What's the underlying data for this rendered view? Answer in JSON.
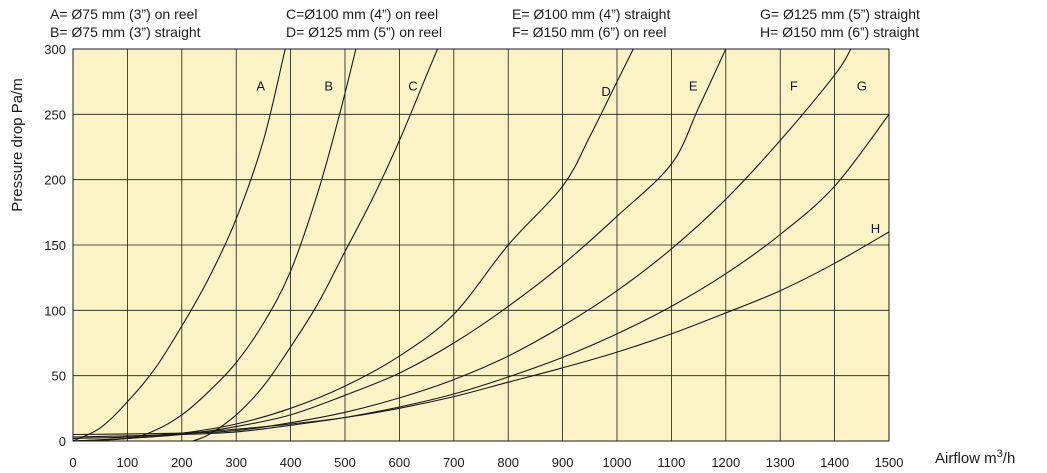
{
  "chart_data": {
    "type": "line",
    "xlabel": "Airflow m³/h",
    "ylabel": "Pressure drop Pa/m",
    "xlim": [
      0,
      1500
    ],
    "ylim": [
      0,
      300
    ],
    "xticks": [
      0,
      100,
      200,
      300,
      400,
      500,
      600,
      700,
      800,
      900,
      1000,
      1100,
      1200,
      1300,
      1400,
      1500
    ],
    "yticks": [
      0,
      50,
      100,
      150,
      200,
      250,
      300
    ],
    "grid": true,
    "background_color": "#fbf3c5",
    "line_color": "#1a1a1a",
    "legend": [
      "A= Ø75 mm (3”) on reel",
      "B= Ø75 mm (3”) straight",
      "C=Ø100 mm (4”) on reel",
      "D= Ø125 mm (5”) on reel",
      "E= Ø100 mm (4”) straight",
      "F= Ø150 mm (6”) on reel",
      "G= Ø125 mm (5”) straight",
      "H= Ø150 mm (6”) straight"
    ],
    "series": [
      {
        "name": "A",
        "label_at": [
          345,
          272
        ],
        "points": [
          [
            0,
            0
          ],
          [
            50,
            10
          ],
          [
            100,
            30
          ],
          [
            150,
            55
          ],
          [
            200,
            88
          ],
          [
            250,
            125
          ],
          [
            300,
            170
          ],
          [
            350,
            230
          ],
          [
            390,
            300
          ]
        ]
      },
      {
        "name": "B",
        "label_at": [
          470,
          272
        ],
        "points": [
          [
            0,
            0
          ],
          [
            100,
            2
          ],
          [
            150,
            8
          ],
          [
            200,
            20
          ],
          [
            250,
            38
          ],
          [
            300,
            60
          ],
          [
            350,
            90
          ],
          [
            400,
            130
          ],
          [
            450,
            190
          ],
          [
            490,
            250
          ],
          [
            520,
            300
          ]
        ]
      },
      {
        "name": "C",
        "label_at": [
          625,
          272
        ],
        "points": [
          [
            220,
            0
          ],
          [
            250,
            5
          ],
          [
            300,
            20
          ],
          [
            350,
            42
          ],
          [
            400,
            72
          ],
          [
            450,
            105
          ],
          [
            500,
            145
          ],
          [
            550,
            185
          ],
          [
            600,
            230
          ],
          [
            650,
            280
          ],
          [
            670,
            300
          ]
        ]
      },
      {
        "name": "D",
        "label_at": [
          980,
          268
        ],
        "points": [
          [
            0,
            0
          ],
          [
            100,
            2
          ],
          [
            200,
            6
          ],
          [
            300,
            13
          ],
          [
            400,
            25
          ],
          [
            500,
            42
          ],
          [
            600,
            65
          ],
          [
            700,
            97
          ],
          [
            800,
            150
          ],
          [
            900,
            195
          ],
          [
            950,
            233
          ],
          [
            1000,
            275
          ],
          [
            1030,
            300
          ]
        ]
      },
      {
        "name": "E",
        "label_at": [
          1140,
          272
        ],
        "points": [
          [
            0,
            0
          ],
          [
            100,
            2
          ],
          [
            200,
            5
          ],
          [
            300,
            11
          ],
          [
            400,
            20
          ],
          [
            500,
            35
          ],
          [
            600,
            52
          ],
          [
            700,
            75
          ],
          [
            800,
            103
          ],
          [
            900,
            135
          ],
          [
            1000,
            172
          ],
          [
            1100,
            212
          ],
          [
            1150,
            255
          ],
          [
            1200,
            300
          ]
        ]
      },
      {
        "name": "F",
        "label_at": [
          1325,
          272
        ],
        "points": [
          [
            0,
            5
          ],
          [
            200,
            6
          ],
          [
            300,
            8
          ],
          [
            400,
            14
          ],
          [
            500,
            22
          ],
          [
            600,
            33
          ],
          [
            700,
            47
          ],
          [
            800,
            65
          ],
          [
            900,
            88
          ],
          [
            1000,
            115
          ],
          [
            1100,
            147
          ],
          [
            1200,
            185
          ],
          [
            1300,
            230
          ],
          [
            1400,
            280
          ],
          [
            1430,
            300
          ]
        ]
      },
      {
        "name": "G",
        "label_at": [
          1450,
          272
        ],
        "points": [
          [
            0,
            3
          ],
          [
            200,
            5
          ],
          [
            300,
            7
          ],
          [
            400,
            12
          ],
          [
            500,
            18
          ],
          [
            600,
            26
          ],
          [
            700,
            36
          ],
          [
            800,
            49
          ],
          [
            900,
            64
          ],
          [
            1000,
            82
          ],
          [
            1100,
            103
          ],
          [
            1200,
            128
          ],
          [
            1300,
            158
          ],
          [
            1400,
            195
          ],
          [
            1500,
            250
          ]
        ]
      },
      {
        "name": "H",
        "label_at": [
          1475,
          163
        ],
        "points": [
          [
            0,
            2
          ],
          [
            100,
            3
          ],
          [
            200,
            6
          ],
          [
            300,
            9
          ],
          [
            400,
            13
          ],
          [
            500,
            18
          ],
          [
            600,
            25
          ],
          [
            700,
            34
          ],
          [
            800,
            45
          ],
          [
            900,
            56
          ],
          [
            1000,
            68
          ],
          [
            1100,
            82
          ],
          [
            1200,
            98
          ],
          [
            1300,
            115
          ],
          [
            1400,
            136
          ],
          [
            1500,
            160
          ]
        ]
      }
    ]
  }
}
